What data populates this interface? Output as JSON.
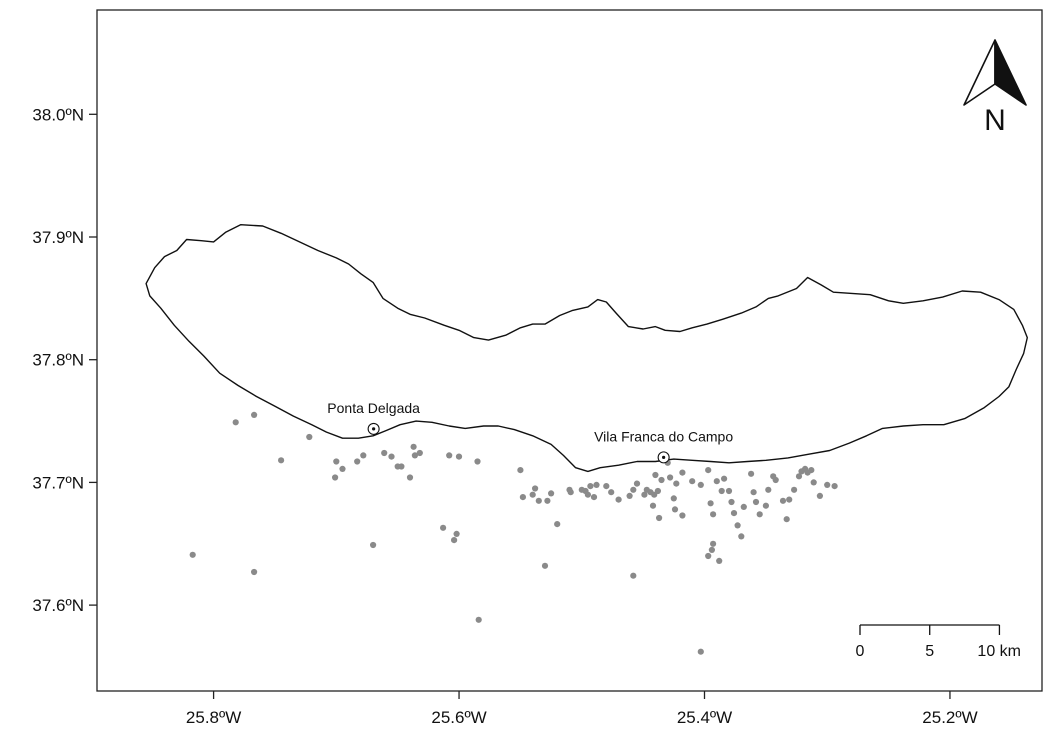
{
  "map": {
    "lon_range": [
      -25.895,
      -25.125
    ],
    "lat_range": [
      37.53,
      38.085
    ],
    "x_ticks": [
      {
        "lon": -25.8,
        "label": "25.8ºW"
      },
      {
        "lon": -25.6,
        "label": "25.6ºW"
      },
      {
        "lon": -25.4,
        "label": "25.4ºW"
      },
      {
        "lon": -25.2,
        "label": "25.2ºW"
      }
    ],
    "y_ticks": [
      {
        "lat": 38.0,
        "label": "38.0ºN"
      },
      {
        "lat": 37.9,
        "label": "37.9ºN"
      },
      {
        "lat": 37.8,
        "label": "37.8ºN"
      },
      {
        "lat": 37.7,
        "label": "37.7ºN"
      },
      {
        "lat": 37.6,
        "label": "37.6ºN"
      }
    ],
    "places": [
      {
        "name": "Ponta Delgada",
        "lon": -25.6696,
        "lat": 37.7436
      },
      {
        "name": "Vila Franca do Campo",
        "lon": -25.4333,
        "lat": 37.7204
      }
    ],
    "north_label": "N",
    "scale_bar": {
      "ticks": [
        {
          "km": 0,
          "label": "0"
        },
        {
          "km": 5,
          "label": "5"
        },
        {
          "km": 10,
          "label": "10 km"
        }
      ]
    },
    "colors": {
      "coastline": "#111111",
      "points": "#8a8a8a",
      "frame": "#222222"
    },
    "coastline": [
      [
        -25.855,
        37.862
      ],
      [
        -25.848,
        37.875
      ],
      [
        -25.84,
        37.884
      ],
      [
        -25.83,
        37.889
      ],
      [
        -25.822,
        37.898
      ],
      [
        -25.81,
        37.897
      ],
      [
        -25.8,
        37.896
      ],
      [
        -25.79,
        37.904
      ],
      [
        -25.778,
        37.91
      ],
      [
        -25.76,
        37.909
      ],
      [
        -25.745,
        37.903
      ],
      [
        -25.73,
        37.896
      ],
      [
        -25.715,
        37.889
      ],
      [
        -25.7,
        37.883
      ],
      [
        -25.69,
        37.878
      ],
      [
        -25.68,
        37.87
      ],
      [
        -25.67,
        37.863
      ],
      [
        -25.662,
        37.85
      ],
      [
        -25.65,
        37.842
      ],
      [
        -25.64,
        37.837
      ],
      [
        -25.628,
        37.834
      ],
      [
        -25.612,
        37.828
      ],
      [
        -25.6,
        37.824
      ],
      [
        -25.588,
        37.818
      ],
      [
        -25.576,
        37.816
      ],
      [
        -25.562,
        37.82
      ],
      [
        -25.55,
        37.826
      ],
      [
        -25.54,
        37.829
      ],
      [
        -25.53,
        37.829
      ],
      [
        -25.518,
        37.836
      ],
      [
        -25.508,
        37.84
      ],
      [
        -25.495,
        37.843
      ],
      [
        -25.487,
        37.849
      ],
      [
        -25.48,
        37.847
      ],
      [
        -25.472,
        37.838
      ],
      [
        -25.462,
        37.827
      ],
      [
        -25.45,
        37.825
      ],
      [
        -25.44,
        37.827
      ],
      [
        -25.432,
        37.824
      ],
      [
        -25.42,
        37.823
      ],
      [
        -25.41,
        37.826
      ],
      [
        -25.398,
        37.829
      ],
      [
        -25.385,
        37.833
      ],
      [
        -25.37,
        37.838
      ],
      [
        -25.358,
        37.843
      ],
      [
        -25.348,
        37.85
      ],
      [
        -25.34,
        37.852
      ],
      [
        -25.325,
        37.858
      ],
      [
        -25.316,
        37.867
      ],
      [
        -25.305,
        37.861
      ],
      [
        -25.295,
        37.855
      ],
      [
        -25.28,
        37.854
      ],
      [
        -25.265,
        37.853
      ],
      [
        -25.25,
        37.848
      ],
      [
        -25.238,
        37.846
      ],
      [
        -25.222,
        37.848
      ],
      [
        -25.206,
        37.851
      ],
      [
        -25.19,
        37.856
      ],
      [
        -25.175,
        37.855
      ],
      [
        -25.16,
        37.849
      ],
      [
        -25.148,
        37.841
      ],
      [
        -25.141,
        37.828
      ],
      [
        -25.137,
        37.818
      ],
      [
        -25.14,
        37.805
      ],
      [
        -25.146,
        37.792
      ],
      [
        -25.152,
        37.778
      ],
      [
        -25.16,
        37.77
      ],
      [
        -25.172,
        37.761
      ],
      [
        -25.188,
        37.752
      ],
      [
        -25.205,
        37.747
      ],
      [
        -25.222,
        37.747
      ],
      [
        -25.238,
        37.746
      ],
      [
        -25.255,
        37.744
      ],
      [
        -25.268,
        37.738
      ],
      [
        -25.282,
        37.732
      ],
      [
        -25.298,
        37.726
      ],
      [
        -25.315,
        37.723
      ],
      [
        -25.332,
        37.72
      ],
      [
        -25.35,
        37.718
      ],
      [
        -25.365,
        37.717
      ],
      [
        -25.38,
        37.716
      ],
      [
        -25.395,
        37.717
      ],
      [
        -25.41,
        37.718
      ],
      [
        -25.425,
        37.719
      ],
      [
        -25.44,
        37.717
      ],
      [
        -25.455,
        37.717
      ],
      [
        -25.47,
        37.714
      ],
      [
        -25.485,
        37.712
      ],
      [
        -25.495,
        37.709
      ],
      [
        -25.505,
        37.712
      ],
      [
        -25.515,
        37.722
      ],
      [
        -25.525,
        37.731
      ],
      [
        -25.54,
        37.738
      ],
      [
        -25.555,
        37.743
      ],
      [
        -25.568,
        37.746
      ],
      [
        -25.58,
        37.746
      ],
      [
        -25.595,
        37.744
      ],
      [
        -25.608,
        37.746
      ],
      [
        -25.622,
        37.749
      ],
      [
        -25.635,
        37.75
      ],
      [
        -25.648,
        37.747
      ],
      [
        -25.66,
        37.742
      ],
      [
        -25.67,
        37.738
      ],
      [
        -25.682,
        37.736
      ],
      [
        -25.695,
        37.736
      ],
      [
        -25.708,
        37.741
      ],
      [
        -25.72,
        37.747
      ],
      [
        -25.735,
        37.754
      ],
      [
        -25.75,
        37.762
      ],
      [
        -25.765,
        37.77
      ],
      [
        -25.78,
        37.779
      ],
      [
        -25.795,
        37.789
      ],
      [
        -25.808,
        37.803
      ],
      [
        -25.82,
        37.815
      ],
      [
        -25.832,
        37.828
      ],
      [
        -25.843,
        37.842
      ],
      [
        -25.852,
        37.852
      ],
      [
        -25.855,
        37.862
      ]
    ],
    "points": [
      [
        -25.767,
        37.755
      ],
      [
        -25.782,
        37.749
      ],
      [
        -25.722,
        37.737
      ],
      [
        -25.745,
        37.718
      ],
      [
        -25.7,
        37.717
      ],
      [
        -25.695,
        37.711
      ],
      [
        -25.701,
        37.704
      ],
      [
        -25.683,
        37.717
      ],
      [
        -25.678,
        37.722
      ],
      [
        -25.661,
        37.724
      ],
      [
        -25.655,
        37.721
      ],
      [
        -25.65,
        37.713
      ],
      [
        -25.647,
        37.713
      ],
      [
        -25.636,
        37.722
      ],
      [
        -25.637,
        37.729
      ],
      [
        -25.632,
        37.724
      ],
      [
        -25.64,
        37.704
      ],
      [
        -25.608,
        37.722
      ],
      [
        -25.6,
        37.721
      ],
      [
        -25.585,
        37.717
      ],
      [
        -25.613,
        37.663
      ],
      [
        -25.604,
        37.653
      ],
      [
        -25.602,
        37.658
      ],
      [
        -25.584,
        37.588
      ],
      [
        -25.67,
        37.649
      ],
      [
        -25.817,
        37.641
      ],
      [
        -25.767,
        37.627
      ],
      [
        -25.55,
        37.71
      ],
      [
        -25.54,
        37.69
      ],
      [
        -25.538,
        37.695
      ],
      [
        -25.535,
        37.685
      ],
      [
        -25.528,
        37.685
      ],
      [
        -25.525,
        37.691
      ],
      [
        -25.52,
        37.666
      ],
      [
        -25.53,
        37.632
      ],
      [
        -25.548,
        37.688
      ],
      [
        -25.509,
        37.692
      ],
      [
        -25.51,
        37.694
      ],
      [
        -25.5,
        37.694
      ],
      [
        -25.497,
        37.693
      ],
      [
        -25.495,
        37.69
      ],
      [
        -25.493,
        37.697
      ],
      [
        -25.49,
        37.688
      ],
      [
        -25.488,
        37.698
      ],
      [
        -25.48,
        37.697
      ],
      [
        -25.476,
        37.692
      ],
      [
        -25.47,
        37.686
      ],
      [
        -25.461,
        37.689
      ],
      [
        -25.458,
        37.694
      ],
      [
        -25.455,
        37.699
      ],
      [
        -25.449,
        37.69
      ],
      [
        -25.447,
        37.694
      ],
      [
        -25.444,
        37.692
      ],
      [
        -25.441,
        37.69
      ],
      [
        -25.438,
        37.693
      ],
      [
        -25.435,
        37.702
      ],
      [
        -25.43,
        37.716
      ],
      [
        -25.428,
        37.704
      ],
      [
        -25.423,
        37.699
      ],
      [
        -25.418,
        37.708
      ],
      [
        -25.44,
        37.706
      ],
      [
        -25.442,
        37.681
      ],
      [
        -25.437,
        37.671
      ],
      [
        -25.424,
        37.678
      ],
      [
        -25.418,
        37.673
      ],
      [
        -25.458,
        37.624
      ],
      [
        -25.403,
        37.562
      ],
      [
        -25.41,
        37.701
      ],
      [
        -25.403,
        37.698
      ],
      [
        -25.397,
        37.71
      ],
      [
        -25.395,
        37.683
      ],
      [
        -25.393,
        37.674
      ],
      [
        -25.39,
        37.701
      ],
      [
        -25.386,
        37.693
      ],
      [
        -25.384,
        37.703
      ],
      [
        -25.38,
        37.693
      ],
      [
        -25.378,
        37.684
      ],
      [
        -25.376,
        37.675
      ],
      [
        -25.373,
        37.665
      ],
      [
        -25.37,
        37.656
      ],
      [
        -25.368,
        37.68
      ],
      [
        -25.362,
        37.707
      ],
      [
        -25.36,
        37.692
      ],
      [
        -25.358,
        37.684
      ],
      [
        -25.355,
        37.674
      ],
      [
        -25.35,
        37.681
      ],
      [
        -25.348,
        37.694
      ],
      [
        -25.344,
        37.705
      ],
      [
        -25.342,
        37.702
      ],
      [
        -25.336,
        37.685
      ],
      [
        -25.333,
        37.67
      ],
      [
        -25.331,
        37.686
      ],
      [
        -25.327,
        37.694
      ],
      [
        -25.323,
        37.705
      ],
      [
        -25.321,
        37.709
      ],
      [
        -25.318,
        37.711
      ],
      [
        -25.316,
        37.708
      ],
      [
        -25.313,
        37.71
      ],
      [
        -25.311,
        37.7
      ],
      [
        -25.306,
        37.689
      ],
      [
        -25.3,
        37.698
      ],
      [
        -25.294,
        37.697
      ],
      [
        -25.397,
        37.64
      ],
      [
        -25.394,
        37.645
      ],
      [
        -25.393,
        37.65
      ],
      [
        -25.388,
        37.636
      ],
      [
        -25.425,
        37.687
      ]
    ]
  }
}
